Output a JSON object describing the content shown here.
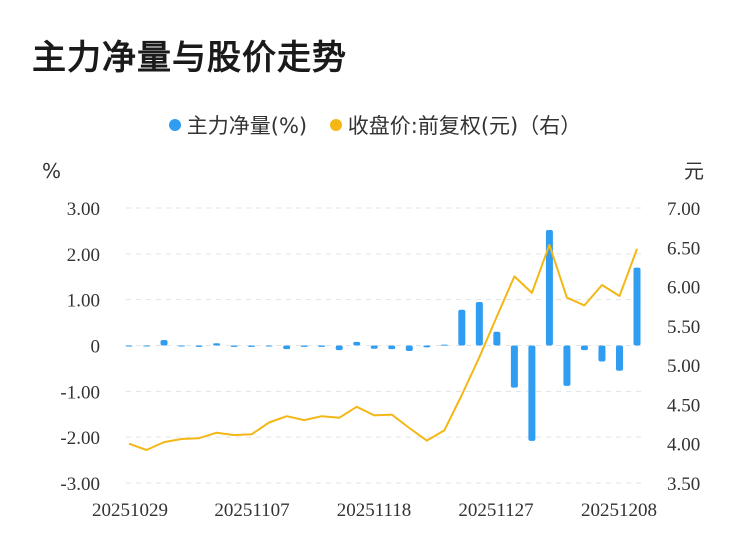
{
  "title": "主力净量与股价走势",
  "legend": {
    "left_label": "主力净量(%)",
    "right_label": "收盘价:前复权(元)（右）",
    "left_color": "#2f9df1",
    "right_color": "#f5b715"
  },
  "chart_data": {
    "type": "bar+line",
    "left_unit": "%",
    "right_unit": "元",
    "left_ylim": [
      -3.0,
      3.0
    ],
    "right_ylim": [
      3.5,
      7.0
    ],
    "left_ticks": [
      "3.00",
      "2.00",
      "1.00",
      "0",
      "-1.00",
      "-2.00",
      "-3.00"
    ],
    "right_ticks": [
      "7.00",
      "6.50",
      "6.00",
      "5.50",
      "5.00",
      "4.50",
      "4.00",
      "3.50"
    ],
    "x_tick_labels": [
      "20251029",
      "20251107",
      "20251118",
      "20251127",
      "20251208"
    ],
    "grid": "horizontal-dashed",
    "series": [
      {
        "name": "主力净量(%)",
        "kind": "bar",
        "axis": "left",
        "values": [
          -0.02,
          -0.02,
          0.12,
          -0.02,
          -0.03,
          0.05,
          -0.03,
          -0.03,
          -0.02,
          -0.08,
          -0.03,
          -0.03,
          -0.1,
          0.08,
          -0.07,
          -0.08,
          -0.12,
          -0.04,
          0.02,
          0.78,
          0.95,
          0.3,
          -0.92,
          -2.08,
          2.52,
          -0.88,
          -0.1,
          -0.35,
          -0.55,
          1.7
        ]
      },
      {
        "name": "收盘价:前复权(元)（右）",
        "kind": "line",
        "axis": "right",
        "values": [
          4.0,
          3.92,
          4.02,
          4.06,
          4.07,
          4.14,
          4.11,
          4.12,
          4.27,
          4.35,
          4.3,
          4.35,
          4.33,
          4.47,
          4.36,
          4.37,
          4.2,
          4.04,
          4.17,
          4.62,
          5.1,
          5.62,
          6.13,
          5.92,
          6.53,
          5.86,
          5.76,
          6.02,
          5.88,
          6.48
        ]
      }
    ]
  }
}
